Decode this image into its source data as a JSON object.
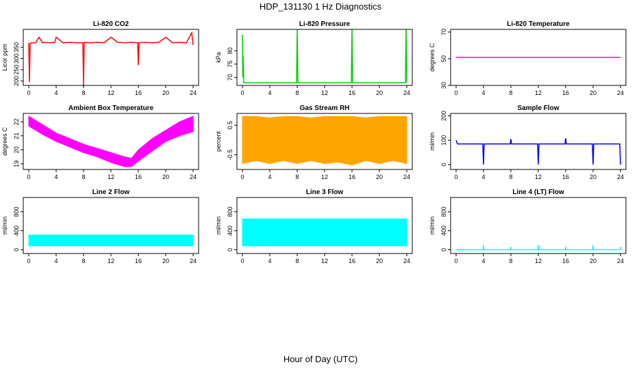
{
  "title": "HDP_131130  1 Hz Diagnostics",
  "xlabel": "Hour of Day (UTC)",
  "chart_data": [
    {
      "type": "line",
      "title": "Li-820 CO2",
      "ylabel": "Licor ppm",
      "color": "#ff0000",
      "xlim": [
        0,
        24
      ],
      "xticks": [
        0,
        4,
        8,
        12,
        16,
        20,
        24
      ],
      "ylim": [
        180,
        430
      ],
      "yticks": [
        200,
        250,
        300,
        350
      ],
      "x": [
        0,
        0.1,
        0.2,
        0.3,
        1.0,
        1.5,
        2.0,
        2.2,
        3.0,
        3.8,
        4.0,
        5.0,
        6.0,
        7.0,
        7.9,
        8.0,
        8.1,
        9.0,
        10.0,
        11.0,
        12.0,
        13.0,
        14.0,
        15.0,
        15.9,
        16.0,
        16.1,
        17.0,
        18.0,
        19.0,
        20.0,
        21.0,
        22.0,
        23.0,
        23.8,
        24.0
      ],
      "y": [
        370,
        195,
        365,
        370,
        370,
        395,
        370,
        372,
        370,
        372,
        395,
        370,
        372,
        370,
        370,
        180,
        372,
        370,
        372,
        370,
        395,
        372,
        370,
        372,
        370,
        270,
        370,
        372,
        370,
        372,
        395,
        370,
        372,
        370,
        415,
        360
      ]
    },
    {
      "type": "line",
      "title": "Li-820 Pressure",
      "ylabel": "kPa",
      "color": "#00cc00",
      "xlim": [
        0,
        24
      ],
      "xticks": [
        0,
        4,
        8,
        12,
        16,
        20,
        24
      ],
      "ylim": [
        67,
        88
      ],
      "yticks": [
        70,
        75,
        80
      ],
      "x": [
        0,
        0.05,
        0.1,
        0.2,
        7.9,
        8.0,
        8.1,
        15.9,
        16.0,
        16.1,
        23.8,
        23.9,
        24.0
      ],
      "y": [
        86,
        70,
        78,
        68,
        68,
        88,
        68,
        68,
        88,
        68,
        68,
        88,
        68
      ]
    },
    {
      "type": "line",
      "title": "Li-820 Temperature",
      "ylabel": "degrees C",
      "color": "#ff00ff",
      "xlim": [
        0,
        24
      ],
      "xticks": [
        0,
        4,
        8,
        12,
        16,
        20,
        24
      ],
      "ylim": [
        30,
        72
      ],
      "yticks": [
        30,
        50,
        70
      ],
      "x": [
        0,
        24
      ],
      "y": [
        51,
        51
      ]
    },
    {
      "type": "area",
      "title": "Ambient Box Temperature",
      "ylabel": "degrees C",
      "color": "#ff00ff",
      "xlim": [
        0,
        24
      ],
      "xticks": [
        0,
        4,
        8,
        12,
        16,
        20,
        24
      ],
      "ylim": [
        18.6,
        22.6
      ],
      "yticks": [
        19,
        20,
        21,
        22
      ],
      "x": [
        0,
        2,
        4,
        6,
        8,
        10,
        12,
        14,
        15,
        16,
        18,
        20,
        22,
        24
      ],
      "ymin": [
        21.7,
        21.1,
        20.6,
        20.2,
        19.8,
        19.5,
        19.1,
        18.8,
        18.8,
        19.2,
        19.9,
        20.6,
        21.0,
        21.3
      ],
      "ymax": [
        22.4,
        21.8,
        21.2,
        20.8,
        20.4,
        20.1,
        19.8,
        19.5,
        19.4,
        20.0,
        20.8,
        21.4,
        22.0,
        22.4
      ]
    },
    {
      "type": "area",
      "title": "Gas Stream RH",
      "ylabel": "percent",
      "color": "#ffa500",
      "xlim": [
        0,
        24
      ],
      "xticks": [
        0,
        4,
        8,
        12,
        16,
        20,
        24
      ],
      "ylim": [
        -1.0,
        0.9
      ],
      "yticks": [
        -0.5,
        0.5
      ],
      "x": [
        0,
        2,
        4,
        6,
        8,
        10,
        12,
        14,
        16,
        18,
        20,
        22,
        24
      ],
      "ymin": [
        -0.8,
        -0.7,
        -0.8,
        -0.7,
        -0.8,
        -0.7,
        -0.8,
        -0.75,
        -0.85,
        -0.7,
        -0.8,
        -0.7,
        -0.8
      ],
      "ymax": [
        0.8,
        0.8,
        0.75,
        0.8,
        0.8,
        0.75,
        0.8,
        0.8,
        0.8,
        0.75,
        0.8,
        0.8,
        0.8
      ]
    },
    {
      "type": "line",
      "title": "Sample Flow",
      "ylabel": "ml/min",
      "color": "#0000ff",
      "xlim": [
        0,
        24
      ],
      "xticks": [
        0,
        4,
        8,
        12,
        16,
        20,
        24
      ],
      "ylim": [
        -20,
        210
      ],
      "yticks": [
        0,
        100,
        200
      ],
      "x": [
        0,
        0.2,
        3.9,
        4.0,
        4.1,
        7.9,
        8.0,
        8.1,
        11.9,
        12.0,
        12.1,
        15.9,
        16.0,
        16.1,
        19.9,
        20.0,
        20.1,
        23.9,
        24.0
      ],
      "y": [
        100,
        85,
        85,
        0,
        85,
        85,
        105,
        85,
        85,
        0,
        85,
        85,
        108,
        85,
        85,
        0,
        85,
        85,
        0
      ]
    },
    {
      "type": "area",
      "title": "Line 2 Flow",
      "ylabel": "ml/min",
      "color": "#00ffff",
      "xlim": [
        0,
        24
      ],
      "xticks": [
        0,
        4,
        8,
        12,
        16,
        20,
        24
      ],
      "ylim": [
        -80,
        1100
      ],
      "yticks": [
        0,
        400,
        800
      ],
      "x": [
        0,
        24
      ],
      "ymin": [
        80,
        80
      ],
      "ymax": [
        310,
        310
      ]
    },
    {
      "type": "area",
      "title": "Line 3 Flow",
      "ylabel": "ml/min",
      "color": "#00ffff",
      "xlim": [
        0,
        24
      ],
      "xticks": [
        0,
        4,
        8,
        12,
        16,
        20,
        24
      ],
      "ylim": [
        -80,
        1100
      ],
      "yticks": [
        0,
        400,
        800
      ],
      "x": [
        0,
        24
      ],
      "ymin": [
        80,
        80
      ],
      "ymax": [
        650,
        650
      ]
    },
    {
      "type": "line",
      "title": "Line 4 (LT) Flow",
      "ylabel": "ml/min",
      "color": "#00ffff",
      "xlim": [
        0,
        24
      ],
      "xticks": [
        0,
        4,
        8,
        12,
        16,
        20,
        24
      ],
      "ylim": [
        -80,
        1100
      ],
      "yticks": [
        0,
        400,
        800
      ],
      "x": [
        0,
        3.95,
        4.0,
        4.05,
        7.95,
        8.0,
        8.05,
        11.95,
        12.0,
        12.05,
        15.95,
        16.0,
        16.05,
        19.95,
        20.0,
        20.05,
        23.95,
        24.0
      ],
      "y": [
        0,
        0,
        100,
        0,
        0,
        60,
        0,
        0,
        100,
        0,
        0,
        60,
        0,
        0,
        100,
        0,
        0,
        60
      ]
    }
  ]
}
